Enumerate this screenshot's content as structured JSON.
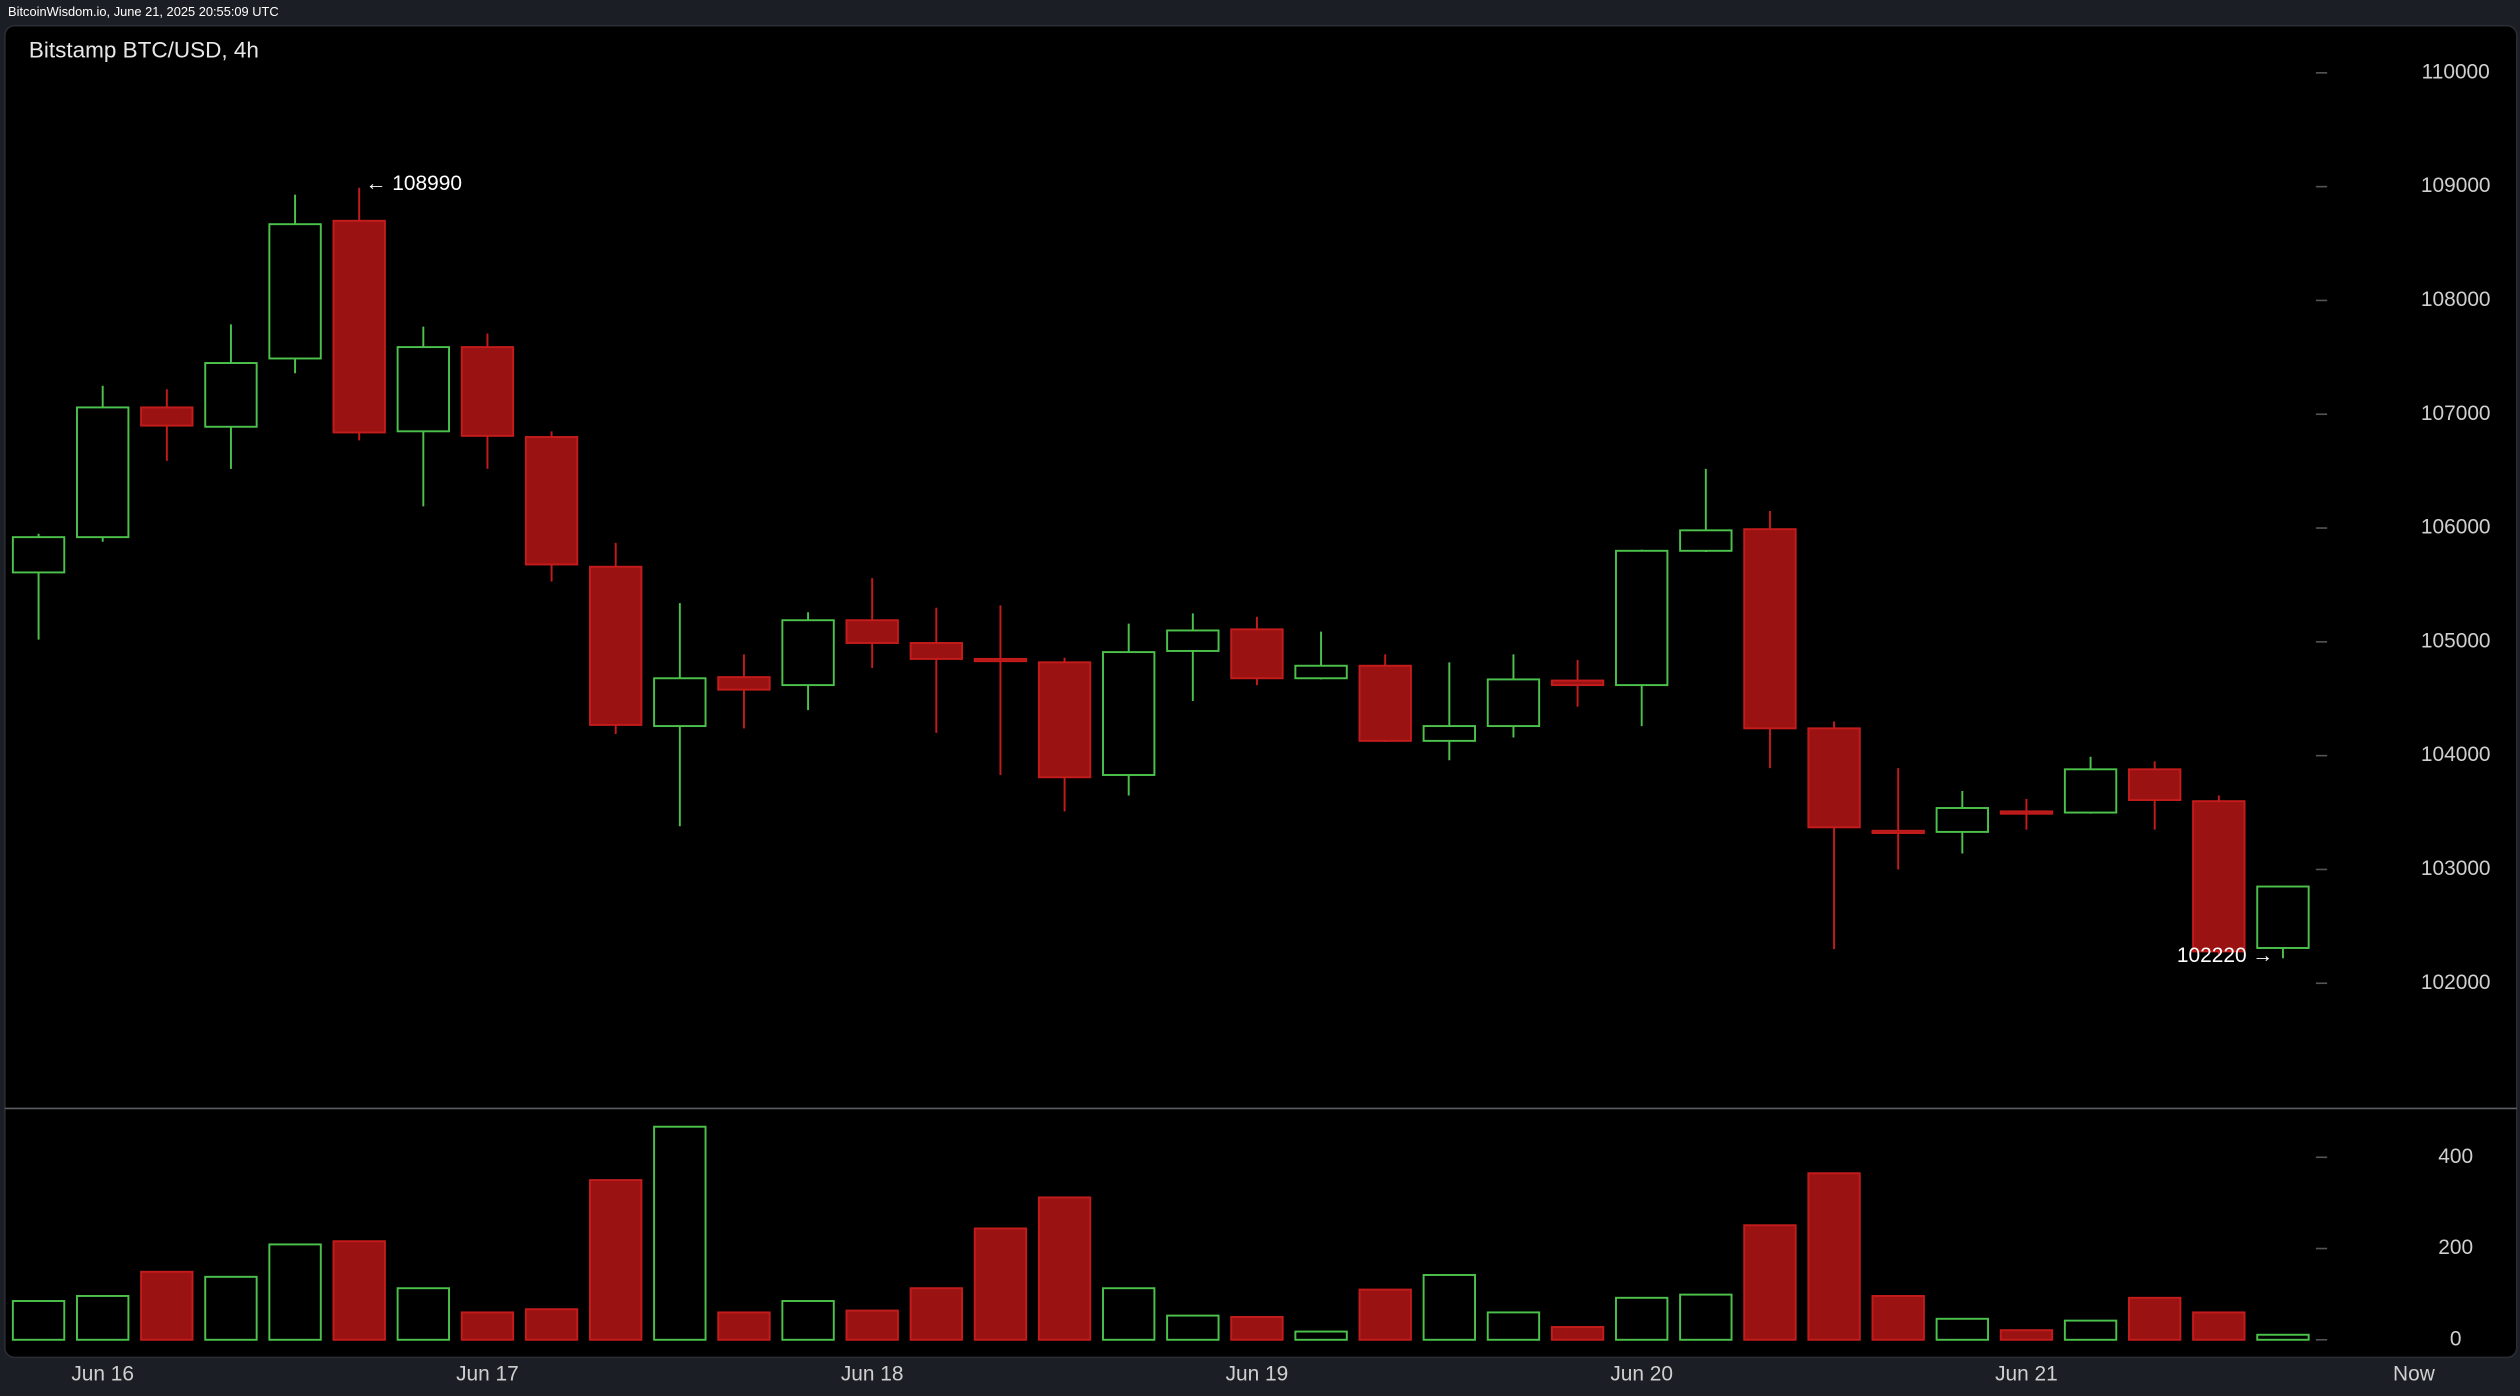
{
  "header": {
    "source": "BitcoinWisdom.io, June 21, 2025 20:55:09 UTC"
  },
  "chart_data": [
    {
      "type": "candlestick",
      "title": "Bitstamp BTC/USD, 4h",
      "categories": [
        null,
        "Jun 16",
        null,
        null,
        null,
        null,
        null,
        "Jun 17",
        null,
        null,
        null,
        null,
        null,
        "Jun 18",
        null,
        null,
        null,
        null,
        null,
        "Jun 19",
        null,
        null,
        null,
        null,
        null,
        "Jun 20",
        null,
        null,
        null,
        null,
        null,
        "Jun 21",
        null,
        null,
        null,
        null
      ],
      "open": [
        105610,
        105920,
        107060,
        106890,
        107490,
        108700,
        106850,
        107590,
        106800,
        105660,
        104260,
        104690,
        104620,
        105190,
        104990,
        104850,
        104820,
        103830,
        104920,
        105110,
        104680,
        104790,
        104130,
        104260,
        104660,
        104620,
        105800,
        105990,
        104240,
        103340,
        103330,
        103510,
        103500,
        103880,
        103600,
        102310
      ],
      "high": [
        105950,
        107250,
        107220,
        107790,
        108930,
        108990,
        107770,
        107710,
        106850,
        105870,
        105340,
        104890,
        105260,
        105560,
        105300,
        105320,
        104860,
        105160,
        105250,
        105220,
        105090,
        104890,
        104820,
        104890,
        104840,
        105810,
        106520,
        106150,
        104300,
        103890,
        103690,
        103620,
        103990,
        103950,
        103650,
        102850
      ],
      "low": [
        105020,
        105880,
        106590,
        106520,
        107360,
        106770,
        106190,
        106520,
        105530,
        104190,
        103380,
        104240,
        104400,
        104770,
        104200,
        103830,
        103510,
        103650,
        104480,
        104620,
        104670,
        104120,
        103960,
        104160,
        104430,
        104260,
        105790,
        103890,
        102300,
        103000,
        103140,
        103350,
        103490,
        103350,
        102240,
        102220
      ],
      "close": [
        105920,
        107060,
        106900,
        107450,
        108670,
        106840,
        107590,
        106810,
        105680,
        104270,
        104680,
        104580,
        105190,
        104990,
        104850,
        104830,
        103810,
        104910,
        105100,
        104680,
        104790,
        104130,
        104260,
        104670,
        104620,
        105800,
        105980,
        104240,
        103370,
        103320,
        103540,
        103490,
        103880,
        103610,
        102280,
        102850
      ],
      "up_color": "#4cc24c",
      "down_color": "#c41c1c",
      "max_label": "← 108990",
      "min_label": "102220 →",
      "ylim": [
        100900,
        110400
      ],
      "yticks": [
        102000,
        103000,
        104000,
        105000,
        106000,
        107000,
        108000,
        109000,
        110000
      ]
    },
    {
      "type": "bar",
      "values": [
        85,
        96,
        149,
        138,
        209,
        216,
        113,
        60,
        67,
        350,
        467,
        60,
        85,
        64,
        113,
        244,
        312,
        113,
        53,
        50,
        18,
        110,
        142,
        60,
        28,
        92,
        99,
        251,
        365,
        96,
        46,
        21,
        42,
        92,
        60,
        11
      ],
      "end_label": "Now",
      "ylim": [
        0,
        500
      ],
      "yticks": [
        0,
        200,
        400
      ]
    }
  ]
}
